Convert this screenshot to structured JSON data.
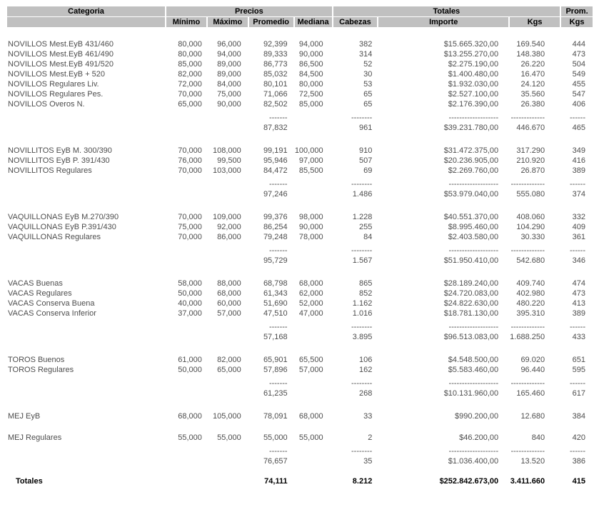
{
  "colors": {
    "header_bg": "#c0c0c0",
    "header_text": "#000000",
    "body_text": "#4d4d4d"
  },
  "header": {
    "categoria": "Categoria",
    "precios": "Precios",
    "totales": "Totales",
    "prom_line1": "Prom.",
    "minimo": "Mínimo",
    "maximo": "Máximo",
    "promedio": "Promedio",
    "mediana": "Mediana",
    "cabezas": "Cabezas",
    "importe": "Importe",
    "kgs": "Kgs",
    "prom_kgs": "Kgs"
  },
  "dashes": {
    "prom": "-------",
    "cab": "--------",
    "imp": "-------------------",
    "kgs": "-------------",
    "promkgs": "------"
  },
  "sections": [
    {
      "rows": [
        {
          "cat": "NOVILLOS Mest.EyB 431/460",
          "min": "80,000",
          "max": "96,000",
          "prom": "92,399",
          "med": "94,000",
          "cab": "382",
          "imp": "$15.665.320,00",
          "kgs": "169.540",
          "promkgs": "444"
        },
        {
          "cat": "NOVILLOS Mest.EyB 461/490",
          "min": "80,000",
          "max": "94,000",
          "prom": "89,333",
          "med": "90,000",
          "cab": "314",
          "imp": "$13.255.270,00",
          "kgs": "148.380",
          "promkgs": "473"
        },
        {
          "cat": "NOVILLOS Mest.EyB 491/520",
          "min": "85,000",
          "max": "89,000",
          "prom": "86,773",
          "med": "86,500",
          "cab": "52",
          "imp": "$2.275.190,00",
          "kgs": "26.220",
          "promkgs": "504"
        },
        {
          "cat": "NOVILLOS Mest.EyB + 520",
          "min": "82,000",
          "max": "89,000",
          "prom": "85,032",
          "med": "84,500",
          "cab": "30",
          "imp": "$1.400.480,00",
          "kgs": "16.470",
          "promkgs": "549"
        },
        {
          "cat": "NOVILLOS Regulares Liv.",
          "min": "72,000",
          "max": "84,000",
          "prom": "80,101",
          "med": "80,000",
          "cab": "53",
          "imp": "$1.932.030,00",
          "kgs": "24.120",
          "promkgs": "455"
        },
        {
          "cat": "NOVILLOS Regulares Pes.",
          "min": "70,000",
          "max": "75,000",
          "prom": "71,066",
          "med": "72,500",
          "cab": "65",
          "imp": "$2.527.100,00",
          "kgs": "35.560",
          "promkgs": "547"
        },
        {
          "cat": "NOVILLOS Overos N.",
          "min": "65,000",
          "max": "90,000",
          "prom": "82,502",
          "med": "85,000",
          "cab": "65",
          "imp": "$2.176.390,00",
          "kgs": "26.380",
          "promkgs": "406"
        }
      ],
      "subtotal": {
        "prom": "87,832",
        "cab": "961",
        "imp": "$39.231.780,00",
        "kgs": "446.670",
        "promkgs": "465"
      }
    },
    {
      "rows": [
        {
          "cat": "NOVILLITOS EyB M. 300/390",
          "min": "70,000",
          "max": "108,000",
          "prom": "99,191",
          "med": "100,000",
          "cab": "910",
          "imp": "$31.472.375,00",
          "kgs": "317.290",
          "promkgs": "349"
        },
        {
          "cat": "NOVILLITOS EyB P. 391/430",
          "min": "76,000",
          "max": "99,500",
          "prom": "95,946",
          "med": "97,000",
          "cab": "507",
          "imp": "$20.236.905,00",
          "kgs": "210.920",
          "promkgs": "416"
        },
        {
          "cat": "NOVILLITOS Regulares",
          "min": "70,000",
          "max": "103,000",
          "prom": "84,472",
          "med": "85,500",
          "cab": "69",
          "imp": "$2.269.760,00",
          "kgs": "26.870",
          "promkgs": "389"
        }
      ],
      "subtotal": {
        "prom": "97,246",
        "cab": "1.486",
        "imp": "$53.979.040,00",
        "kgs": "555.080",
        "promkgs": "374"
      }
    },
    {
      "rows": [
        {
          "cat": "VAQUILLONAS EyB M.270/390",
          "min": "70,000",
          "max": "109,000",
          "prom": "99,376",
          "med": "98,000",
          "cab": "1.228",
          "imp": "$40.551.370,00",
          "kgs": "408.060",
          "promkgs": "332"
        },
        {
          "cat": "VAQUILLONAS EyB P.391/430",
          "min": "75,000",
          "max": "92,000",
          "prom": "86,254",
          "med": "90,000",
          "cab": "255",
          "imp": "$8.995.460,00",
          "kgs": "104.290",
          "promkgs": "409"
        },
        {
          "cat": "VAQUILLONAS Regulares",
          "min": "70,000",
          "max": "86,000",
          "prom": "79,248",
          "med": "78,000",
          "cab": "84",
          "imp": "$2.403.580,00",
          "kgs": "30.330",
          "promkgs": "361"
        }
      ],
      "subtotal": {
        "prom": "95,729",
        "cab": "1.567",
        "imp": "$51.950.410,00",
        "kgs": "542.680",
        "promkgs": "346"
      }
    },
    {
      "rows": [
        {
          "cat": "VACAS Buenas",
          "min": "58,000",
          "max": "88,000",
          "prom": "68,798",
          "med": "68,000",
          "cab": "865",
          "imp": "$28.189.240,00",
          "kgs": "409.740",
          "promkgs": "474"
        },
        {
          "cat": "VACAS Regulares",
          "min": "50,000",
          "max": "68,000",
          "prom": "61,343",
          "med": "62,000",
          "cab": "852",
          "imp": "$24.720.083,00",
          "kgs": "402.980",
          "promkgs": "473"
        },
        {
          "cat": "VACAS Conserva Buena",
          "min": "40,000",
          "max": "60,000",
          "prom": "51,690",
          "med": "52,000",
          "cab": "1.162",
          "imp": "$24.822.630,00",
          "kgs": "480.220",
          "promkgs": "413"
        },
        {
          "cat": "VACAS Conserva Inferior",
          "min": "37,000",
          "max": "57,000",
          "prom": "47,510",
          "med": "47,000",
          "cab": "1.016",
          "imp": "$18.781.130,00",
          "kgs": "395.310",
          "promkgs": "389"
        }
      ],
      "subtotal": {
        "prom": "57,168",
        "cab": "3.895",
        "imp": "$96.513.083,00",
        "kgs": "1.688.250",
        "promkgs": "433"
      }
    },
    {
      "rows": [
        {
          "cat": "TOROS Buenos",
          "min": "61,000",
          "max": "82,000",
          "prom": "65,901",
          "med": "65,500",
          "cab": "106",
          "imp": "$4.548.500,00",
          "kgs": "69.020",
          "promkgs": "651"
        },
        {
          "cat": "TOROS Regulares",
          "min": "50,000",
          "max": "65,000",
          "prom": "57,896",
          "med": "57,000",
          "cab": "162",
          "imp": "$5.583.460,00",
          "kgs": "96.440",
          "promkgs": "595"
        }
      ],
      "subtotal": {
        "prom": "61,235",
        "cab": "268",
        "imp": "$10.131.960,00",
        "kgs": "165.460",
        "promkgs": "617"
      }
    },
    {
      "rows": [
        {
          "cat": "MEJ EyB",
          "min": "68,000",
          "max": "105,000",
          "prom": "78,091",
          "med": "68,000",
          "cab": "33",
          "imp": "$990.200,00",
          "kgs": "12.680",
          "promkgs": "384"
        },
        {
          "cat": "MEJ Regulares",
          "gap_before": true,
          "min": "55,000",
          "max": "55,000",
          "prom": "55,000",
          "med": "55,000",
          "cab": "2",
          "imp": "$46.200,00",
          "kgs": "840",
          "promkgs": "420"
        }
      ],
      "subtotal": {
        "prom": "76,657",
        "cab": "35",
        "imp": "$1.036.400,00",
        "kgs": "13.520",
        "promkgs": "386"
      }
    }
  ],
  "totals": {
    "label": "Totales",
    "prom": "74,111",
    "cab": "8.212",
    "imp": "$252.842.673,00",
    "kgs": "3.411.660",
    "promkgs": "415"
  }
}
